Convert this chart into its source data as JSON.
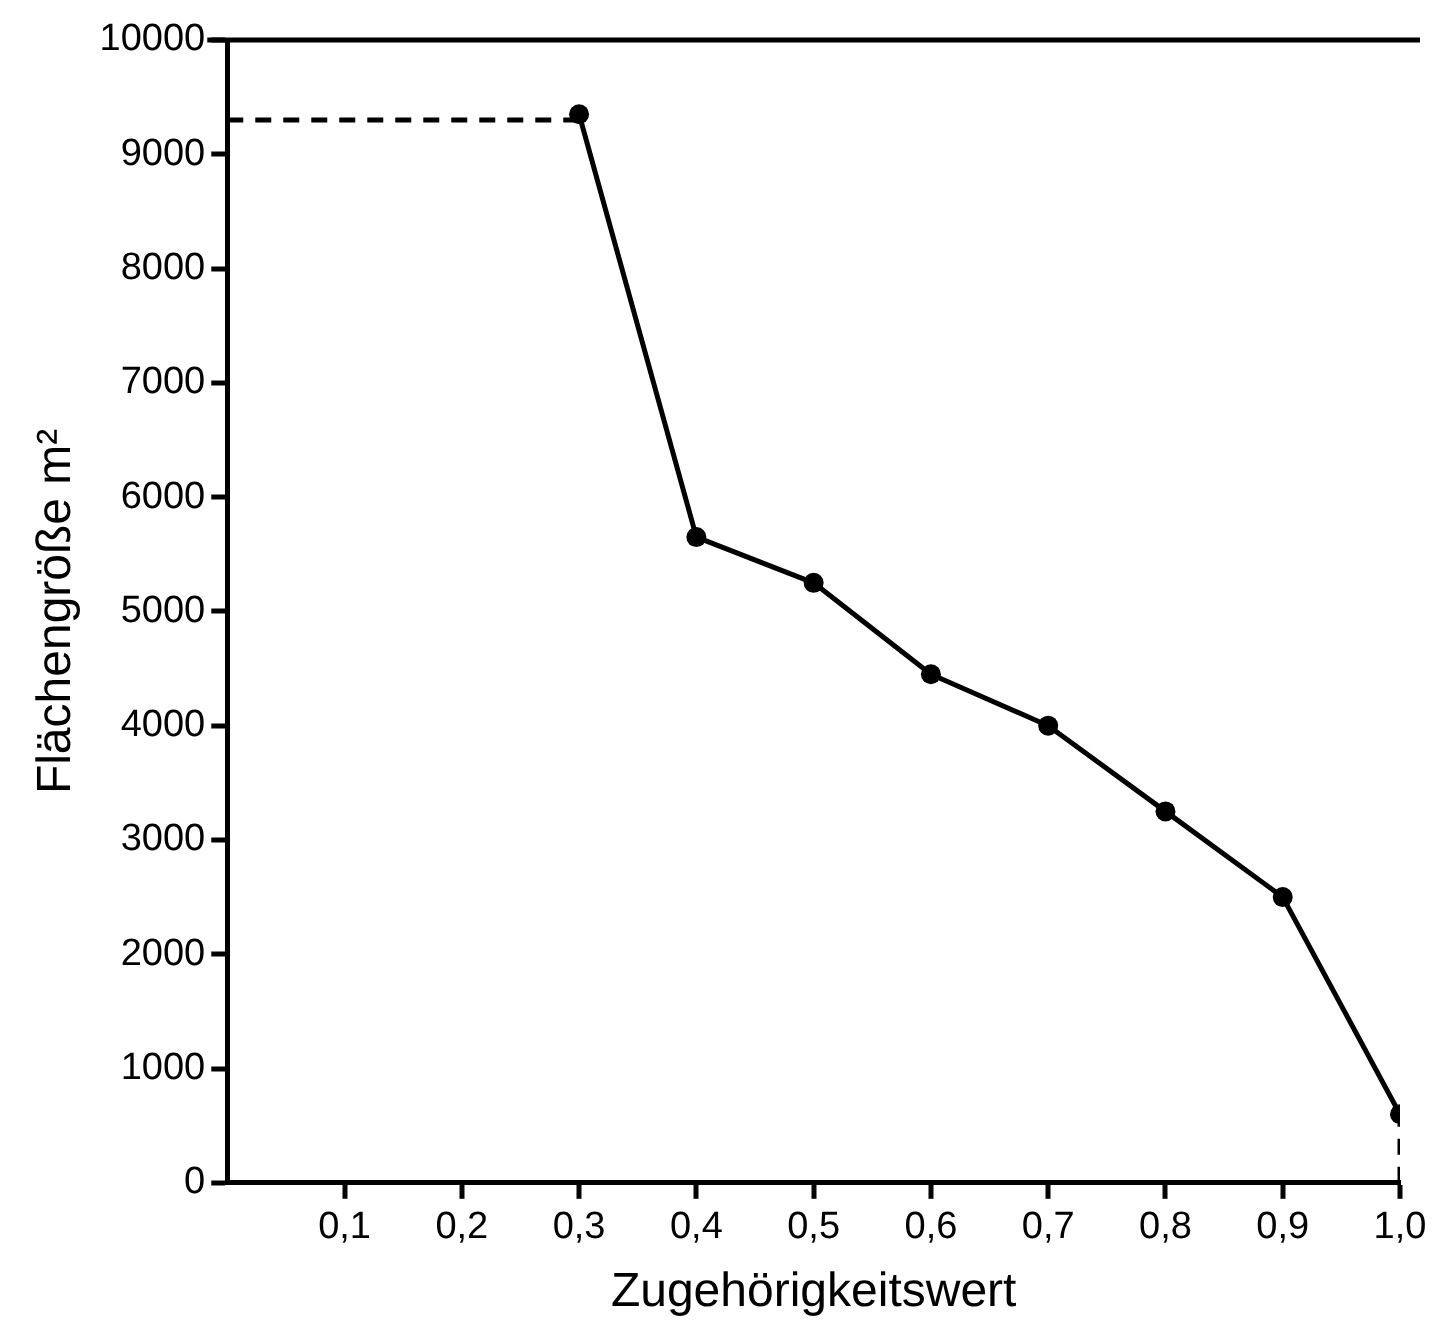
{
  "chart_data": {
    "type": "line",
    "xlabel": "Zugehörigkeitswert",
    "ylabel": "Flächengröße m²",
    "xlim": [
      0,
      1
    ],
    "ylim": [
      0,
      10000
    ],
    "xticks": [
      {
        "value": 0.1,
        "label": "0,1"
      },
      {
        "value": 0.2,
        "label": "0,2"
      },
      {
        "value": 0.3,
        "label": "0,3"
      },
      {
        "value": 0.4,
        "label": "0,4"
      },
      {
        "value": 0.5,
        "label": "0,5"
      },
      {
        "value": 0.6,
        "label": "0,6"
      },
      {
        "value": 0.7,
        "label": "0,7"
      },
      {
        "value": 0.8,
        "label": "0,8"
      },
      {
        "value": 0.9,
        "label": "0,9"
      },
      {
        "value": 1,
        "label": "1,0"
      }
    ],
    "yticks": [
      0,
      1000,
      2000,
      3000,
      4000,
      5000,
      6000,
      7000,
      8000,
      9000,
      10000
    ],
    "grid": false,
    "legend": false,
    "ref_lines": [
      {
        "axis": "y",
        "value": 10000,
        "color": "#000000",
        "line_style": "solid"
      }
    ],
    "series": [
      {
        "color": "#000000",
        "x": [
          0.3,
          0.4,
          0.5,
          0.6,
          0.7,
          0.8,
          0.9,
          1
        ],
        "values": [
          9350,
          5650,
          5250,
          4450,
          4000,
          3250,
          2500,
          600
        ],
        "marker": "circle",
        "line_style": "solid"
      },
      {
        "color": "#000000",
        "x": [
          0,
          0.3
        ],
        "values": [
          9300,
          9300
        ],
        "marker": "none",
        "line_style": "dashed"
      },
      {
        "color": "#000000",
        "x": [
          1,
          1
        ],
        "values": [
          0,
          600
        ],
        "marker": "none",
        "line_style": "dashed"
      }
    ]
  }
}
